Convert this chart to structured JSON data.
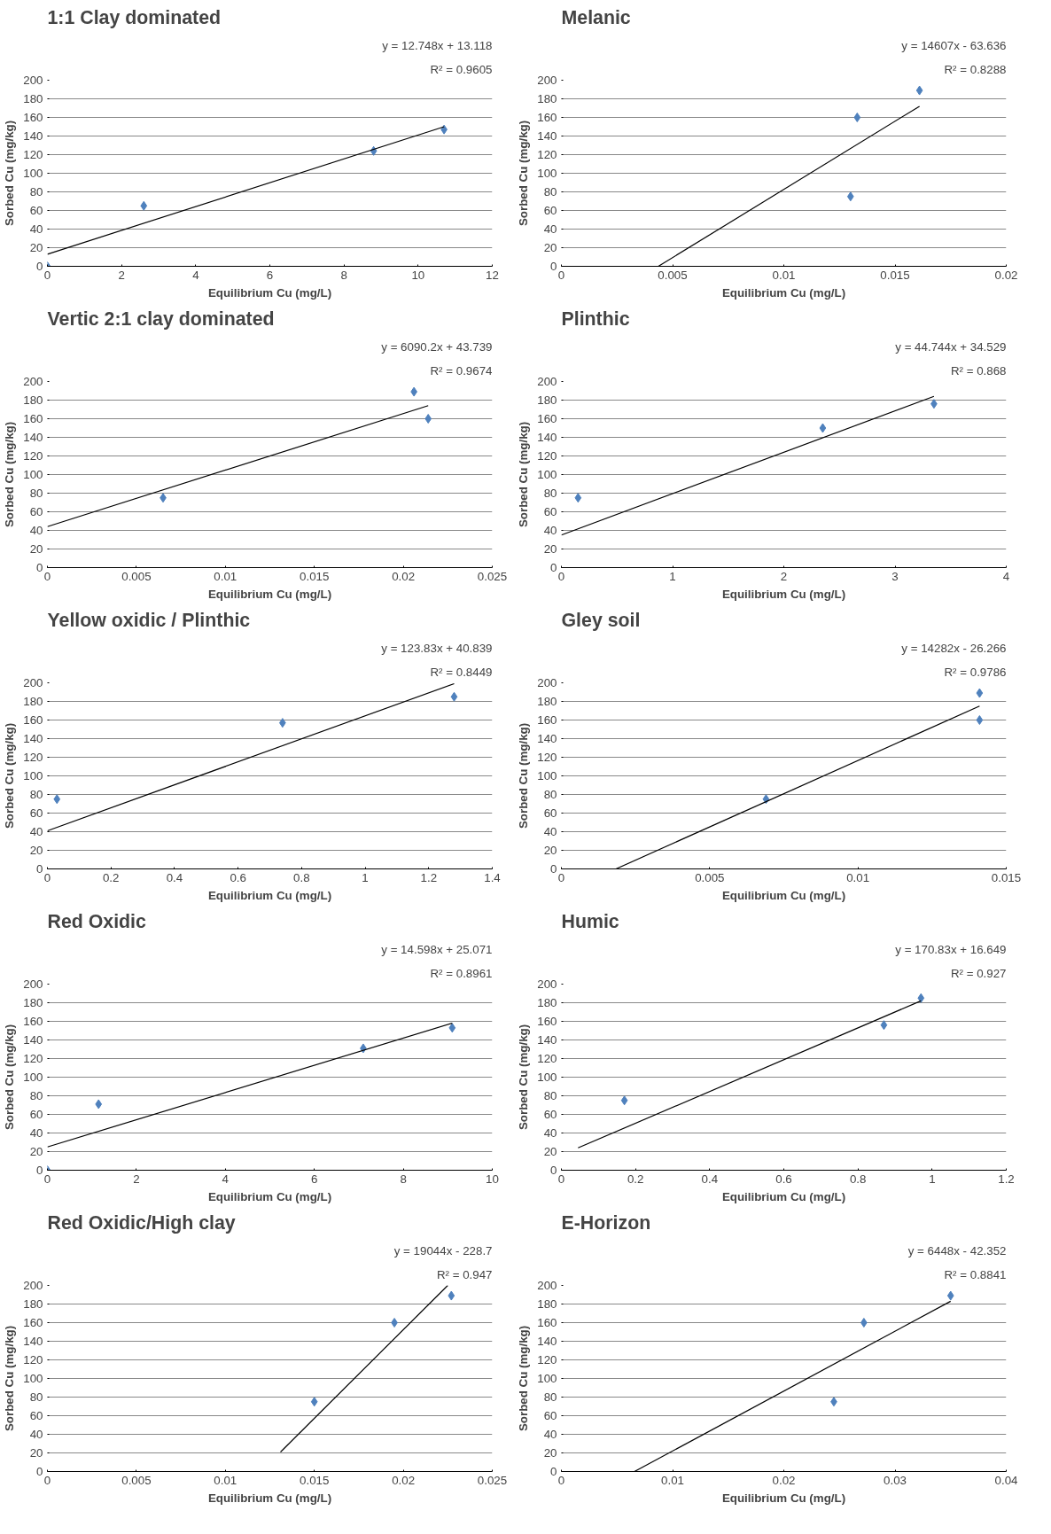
{
  "chart_data": [
    {
      "type": "scatter",
      "title": "1:1 Clay dominated",
      "xlabel": "Equilibrium Cu (mg/L)",
      "ylabel": "Sorbed Cu (mg/kg)",
      "annotations": [
        "y = 12.748x + 13.118",
        "R² = 0.9605"
      ],
      "xlim": [
        0,
        12
      ],
      "xticks": [
        0,
        2,
        4,
        6,
        8,
        10,
        12
      ],
      "ylim": [
        0,
        200
      ],
      "yticks": [
        0,
        20,
        40,
        60,
        80,
        100,
        120,
        140,
        160,
        180,
        200
      ],
      "grid": "y",
      "series": [
        {
          "color": "#4f81bd",
          "marker": "diamond",
          "x": [
            0,
            2.6,
            8.8,
            10.7
          ],
          "values": [
            0,
            65,
            124,
            147
          ]
        },
        {
          "type": "line",
          "marker": "none",
          "color": "#000000",
          "x": [
            0,
            10.7
          ],
          "values": [
            13,
            150
          ]
        }
      ]
    },
    {
      "type": "scatter",
      "title": "Melanic",
      "xlabel": "Equilibrium Cu (mg/L)",
      "ylabel": "Sorbed Cu (mg/kg)",
      "annotations": [
        "y = 14607x - 63.636",
        "R² = 0.8288"
      ],
      "xlim": [
        0,
        0.02
      ],
      "xticks": [
        0,
        0.005,
        0.01,
        0.015,
        0.02
      ],
      "ylim": [
        0,
        200
      ],
      "yticks": [
        0,
        20,
        40,
        60,
        80,
        100,
        120,
        140,
        160,
        180,
        200
      ],
      "grid": "y",
      "series": [
        {
          "color": "#4f81bd",
          "marker": "diamond",
          "x": [
            0.013,
            0.0133,
            0.0161
          ],
          "values": [
            75,
            160,
            189
          ]
        },
        {
          "type": "line",
          "marker": "none",
          "color": "#000000",
          "x": [
            0.00436,
            0.0161
          ],
          "values": [
            0,
            172
          ]
        }
      ]
    },
    {
      "type": "scatter",
      "title": "Vertic 2:1 clay dominated",
      "xlabel": "Equilibrium Cu (mg/L)",
      "ylabel": "Sorbed Cu (mg/kg)",
      "annotations": [
        "y = 6090.2x + 43.739",
        "R² = 0.9674"
      ],
      "xlim": [
        0,
        0.025
      ],
      "xticks": [
        0,
        0.005,
        0.01,
        0.015,
        0.02,
        0.025
      ],
      "ylim": [
        0,
        200
      ],
      "yticks": [
        0,
        20,
        40,
        60,
        80,
        100,
        120,
        140,
        160,
        180,
        200
      ],
      "grid": "y",
      "series": [
        {
          "color": "#4f81bd",
          "marker": "diamond",
          "x": [
            0.0065,
            0.0206,
            0.0214
          ],
          "values": [
            75,
            189,
            160
          ]
        },
        {
          "type": "line",
          "marker": "none",
          "color": "#000000",
          "x": [
            0,
            0.0214
          ],
          "values": [
            44,
            174
          ]
        }
      ]
    },
    {
      "type": "scatter",
      "title": "Plinthic",
      "xlabel": "Equilibrium Cu (mg/L)",
      "ylabel": "Sorbed Cu (mg/kg)",
      "annotations": [
        "y = 44.744x + 34.529",
        "R² = 0.868"
      ],
      "xlim": [
        0,
        4
      ],
      "xticks": [
        0,
        1,
        2,
        3,
        4
      ],
      "ylim": [
        0,
        200
      ],
      "yticks": [
        0,
        20,
        40,
        60,
        80,
        100,
        120,
        140,
        160,
        180,
        200
      ],
      "grid": "y",
      "series": [
        {
          "color": "#4f81bd",
          "marker": "diamond",
          "x": [
            0.15,
            2.35,
            3.35
          ],
          "values": [
            75,
            150,
            176
          ]
        },
        {
          "type": "line",
          "marker": "none",
          "color": "#000000",
          "x": [
            0,
            3.35
          ],
          "values": [
            35,
            184
          ]
        }
      ]
    },
    {
      "type": "scatter",
      "title": "Yellow oxidic / Plinthic",
      "xlabel": "Equilibrium Cu (mg/L)",
      "ylabel": "Sorbed Cu (mg/kg)",
      "annotations": [
        "y = 123.83x + 40.839",
        "R² = 0.8449"
      ],
      "xlim": [
        0,
        1.4
      ],
      "xticks": [
        0,
        0.2,
        0.4,
        0.6,
        0.8,
        1,
        1.2,
        1.4
      ],
      "ylim": [
        0,
        200
      ],
      "yticks": [
        0,
        20,
        40,
        60,
        80,
        100,
        120,
        140,
        160,
        180,
        200
      ],
      "grid": "y",
      "series": [
        {
          "color": "#4f81bd",
          "marker": "diamond",
          "x": [
            0.03,
            0.74,
            1.28
          ],
          "values": [
            75,
            157,
            185
          ]
        },
        {
          "type": "line",
          "marker": "none",
          "color": "#000000",
          "x": [
            0,
            1.28
          ],
          "values": [
            41,
            199
          ]
        }
      ]
    },
    {
      "type": "scatter",
      "title": "Gley soil",
      "xlabel": "Equilibrium Cu (mg/L)",
      "ylabel": "Sorbed Cu (mg/kg)",
      "annotations": [
        "y = 14282x - 26.266",
        "R² = 0.9786"
      ],
      "xlim": [
        0,
        0.015
      ],
      "xticks": [
        0,
        0.005,
        0.01,
        0.015
      ],
      "ylim": [
        0,
        200
      ],
      "yticks": [
        0,
        20,
        40,
        60,
        80,
        100,
        120,
        140,
        160,
        180,
        200
      ],
      "grid": "y",
      "series": [
        {
          "color": "#4f81bd",
          "marker": "diamond",
          "x": [
            0.0069,
            0.0141,
            0.0141
          ],
          "values": [
            75,
            189,
            160
          ]
        },
        {
          "type": "line",
          "marker": "none",
          "color": "#000000",
          "x": [
            0.00184,
            0.0141
          ],
          "values": [
            0,
            175
          ]
        }
      ]
    },
    {
      "type": "scatter",
      "title": "Red Oxidic",
      "xlabel": "Equilibrium Cu (mg/L)",
      "ylabel": "Sorbed Cu (mg/kg)",
      "annotations": [
        "y = 14.598x + 25.071",
        "R² = 0.8961"
      ],
      "xlim": [
        0,
        10
      ],
      "xticks": [
        0,
        2,
        4,
        6,
        8,
        10
      ],
      "ylim": [
        0,
        200
      ],
      "yticks": [
        0,
        20,
        40,
        60,
        80,
        100,
        120,
        140,
        160,
        180,
        200
      ],
      "grid": "y",
      "series": [
        {
          "color": "#4f81bd",
          "marker": "diamond",
          "x": [
            0,
            1.15,
            7.1,
            9.1
          ],
          "values": [
            0,
            71,
            131,
            153
          ]
        },
        {
          "type": "line",
          "marker": "none",
          "color": "#000000",
          "x": [
            0,
            9.1
          ],
          "values": [
            25,
            158
          ]
        }
      ]
    },
    {
      "type": "scatter",
      "title": "Humic",
      "xlabel": "Equilibrium Cu (mg/L)",
      "ylabel": "Sorbed Cu (mg/kg)",
      "annotations": [
        "y = 170.83x + 16.649",
        "R² = 0.927"
      ],
      "xlim": [
        0,
        1.2
      ],
      "xticks": [
        0,
        0.2,
        0.4,
        0.6,
        0.8,
        1,
        1.2
      ],
      "ylim": [
        0,
        200
      ],
      "yticks": [
        0,
        20,
        40,
        60,
        80,
        100,
        120,
        140,
        160,
        180,
        200
      ],
      "grid": "y",
      "series": [
        {
          "color": "#4f81bd",
          "marker": "diamond",
          "x": [
            0.17,
            0.87,
            0.97
          ],
          "values": [
            75,
            156,
            185
          ]
        },
        {
          "type": "line",
          "marker": "none",
          "color": "#000000",
          "x": [
            0.045,
            0.97
          ],
          "values": [
            24,
            182
          ]
        }
      ]
    },
    {
      "type": "scatter",
      "title": "Red Oxidic/High clay",
      "xlabel": "Equilibrium Cu (mg/L)",
      "ylabel": "Sorbed Cu (mg/kg)",
      "annotations": [
        "y = 19044x - 228.7",
        "R² = 0.947"
      ],
      "xlim": [
        0,
        0.025
      ],
      "xticks": [
        0,
        0.005,
        0.01,
        0.015,
        0.02,
        0.025
      ],
      "ylim": [
        0,
        200
      ],
      "yticks": [
        0,
        20,
        40,
        60,
        80,
        100,
        120,
        140,
        160,
        180,
        200
      ],
      "grid": "y",
      "series": [
        {
          "color": "#4f81bd",
          "marker": "diamond",
          "x": [
            0.015,
            0.0195,
            0.0227
          ],
          "values": [
            75,
            160,
            189
          ]
        },
        {
          "type": "line",
          "marker": "none",
          "color": "#000000",
          "x": [
            0.0131,
            0.0225
          ],
          "values": [
            21,
            200
          ]
        }
      ]
    },
    {
      "type": "scatter",
      "title": "E-Horizon",
      "xlabel": "Equilibrium Cu (mg/L)",
      "ylabel": "Sorbed Cu (mg/kg)",
      "annotations": [
        "y = 6448x - 42.352",
        "R² = 0.8841"
      ],
      "xlim": [
        0,
        0.04
      ],
      "xticks": [
        0,
        0.01,
        0.02,
        0.03,
        0.04
      ],
      "ylim": [
        0,
        200
      ],
      "yticks": [
        0,
        20,
        40,
        60,
        80,
        100,
        120,
        140,
        160,
        180,
        200
      ],
      "grid": "y",
      "series": [
        {
          "color": "#4f81bd",
          "marker": "diamond",
          "x": [
            0.0245,
            0.0272,
            0.035
          ],
          "values": [
            75,
            160,
            189
          ]
        },
        {
          "type": "line",
          "marker": "none",
          "color": "#000000",
          "x": [
            0.00657,
            0.035
          ],
          "values": [
            0,
            183
          ]
        }
      ]
    }
  ]
}
